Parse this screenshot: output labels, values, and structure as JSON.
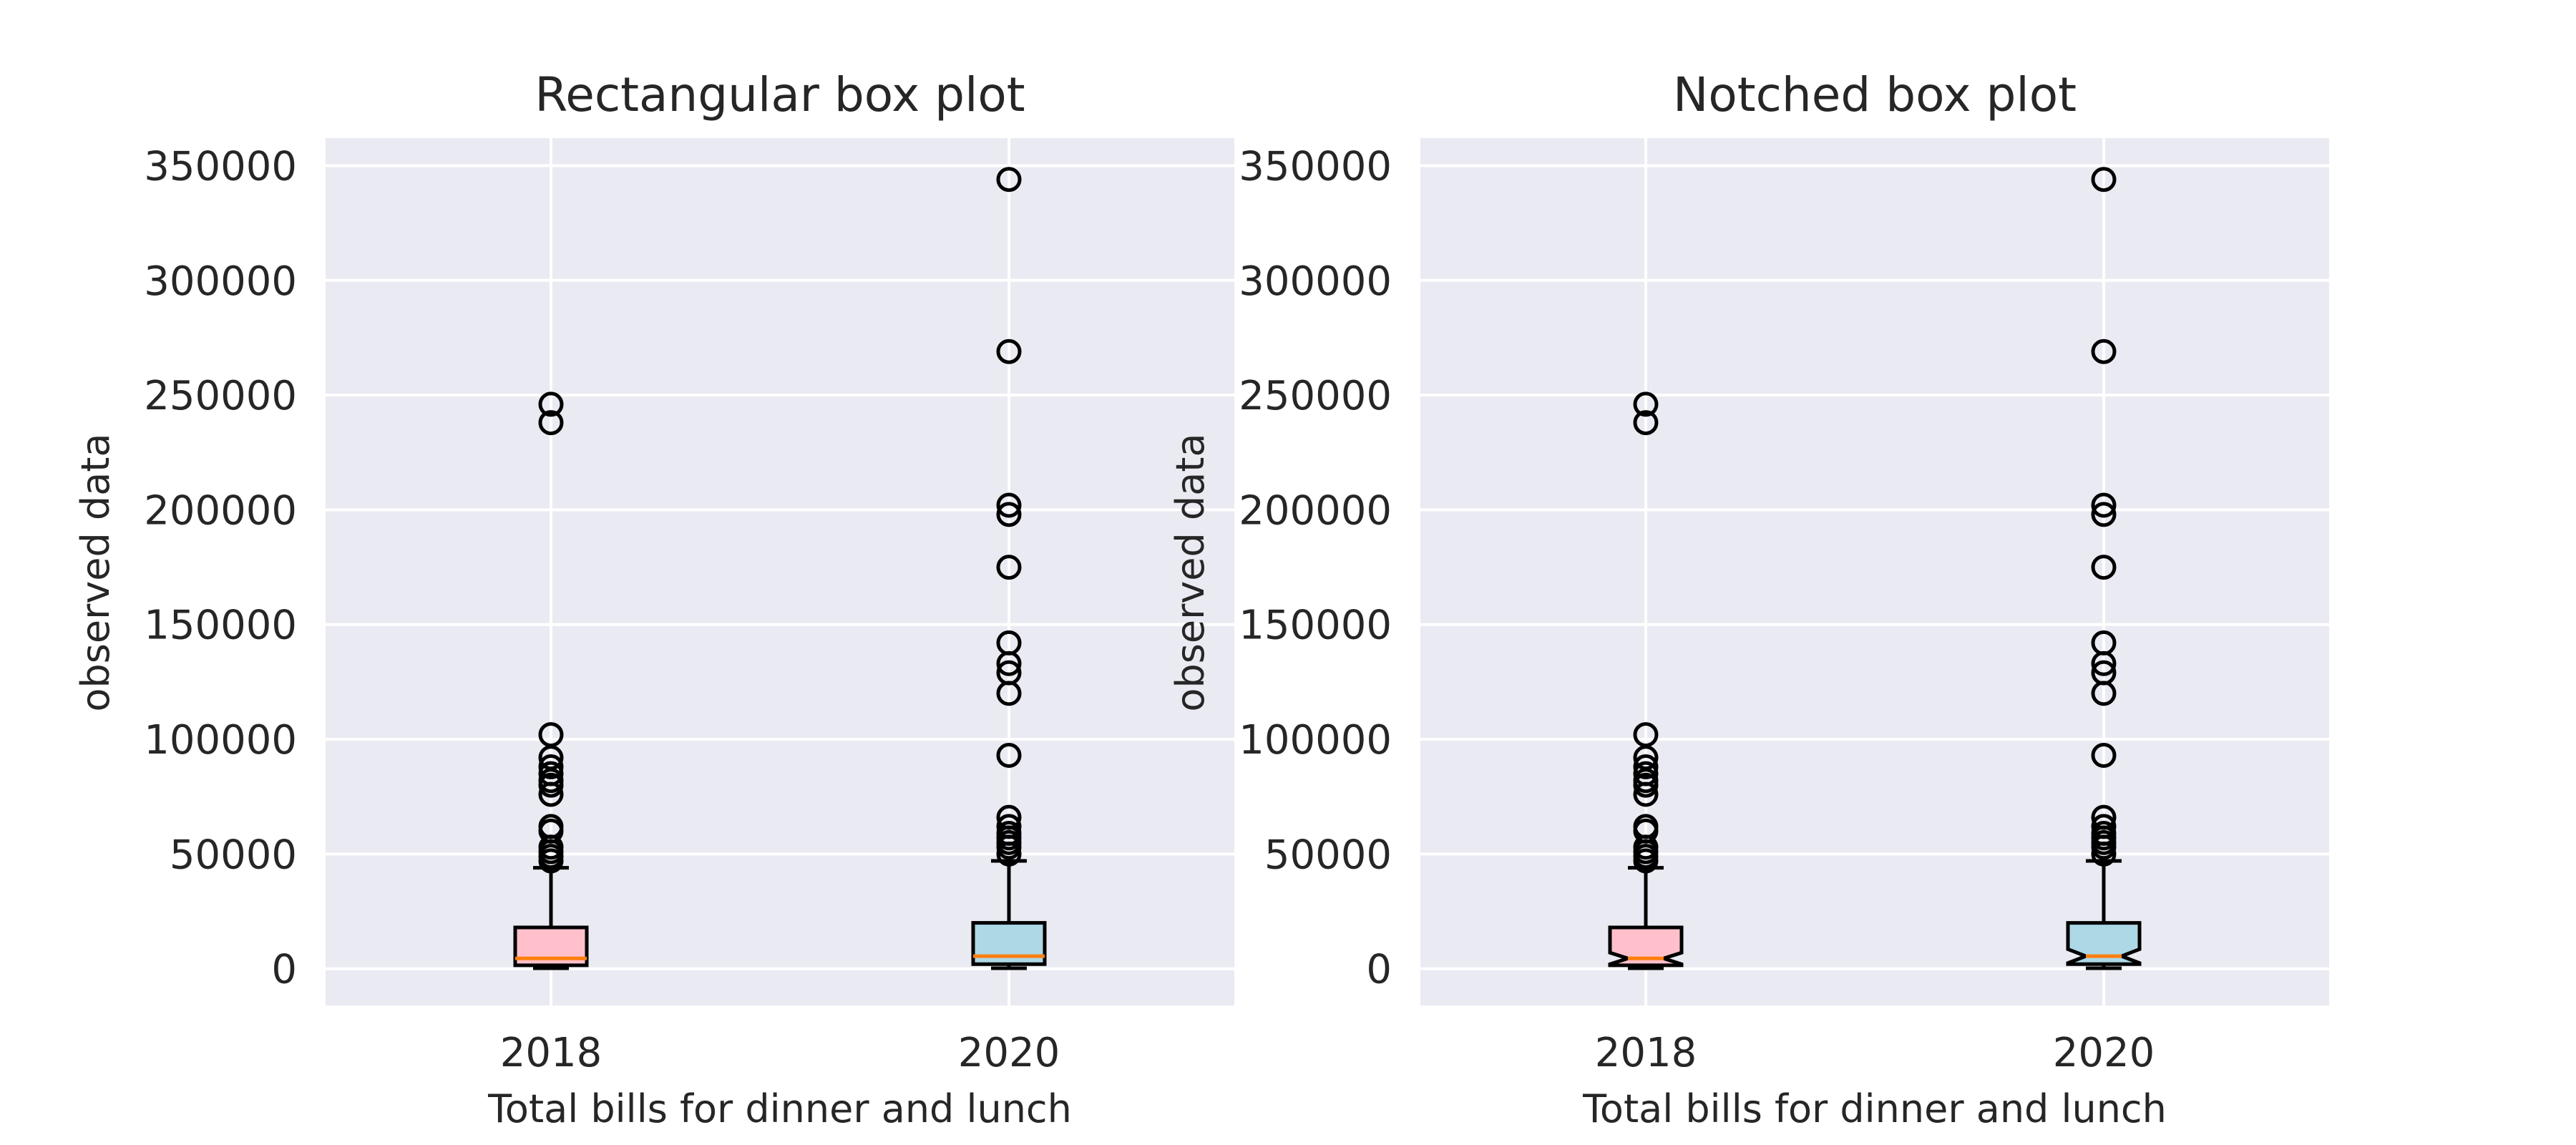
{
  "chart_data": [
    {
      "type": "box",
      "title": "Rectangular box plot",
      "xlabel": "Total bills for dinner and lunch",
      "ylabel": "observed data",
      "notched": false,
      "categories": [
        "2018",
        "2020"
      ],
      "y_ticks": [
        0,
        50000,
        100000,
        150000,
        200000,
        250000,
        300000,
        350000
      ],
      "y_tick_labels": [
        "0",
        "50000",
        "100000",
        "150000",
        "200000",
        "250000",
        "300000",
        "350000"
      ],
      "ylim": [
        -16000,
        362000
      ],
      "grid": true,
      "background": "#eaeaf2",
      "box_colors": [
        "#ffc0cb",
        "#add8e6"
      ],
      "median_color": "#ff7f0e",
      "boxes": [
        {
          "category": "2018",
          "whisker_low": 200,
          "q1": 1500,
          "median": 4500,
          "q3": 18000,
          "whisker_high": 44000,
          "notch_low": 2000,
          "notch_high": 7000,
          "outliers": [
            47000,
            49000,
            51000,
            53000,
            60000,
            62000,
            76000,
            80000,
            82000,
            85000,
            88000,
            92000,
            102000,
            238000,
            246000
          ]
        },
        {
          "category": "2020",
          "whisker_low": 200,
          "q1": 2000,
          "median": 5500,
          "q3": 20000,
          "whisker_high": 47000,
          "notch_low": 2500,
          "notch_high": 8500,
          "outliers": [
            50000,
            53000,
            55000,
            57000,
            59000,
            62000,
            66000,
            93000,
            120000,
            129000,
            133000,
            142000,
            175000,
            198000,
            202000,
            269000,
            344000
          ]
        }
      ]
    },
    {
      "type": "box",
      "title": "Notched box plot",
      "xlabel": "Total bills for dinner and lunch",
      "ylabel": "observed data",
      "notched": true,
      "categories": [
        "2018",
        "2020"
      ],
      "y_ticks": [
        0,
        50000,
        100000,
        150000,
        200000,
        250000,
        300000,
        350000
      ],
      "y_tick_labels": [
        "0",
        "50000",
        "100000",
        "150000",
        "200000",
        "250000",
        "300000",
        "350000"
      ],
      "ylim": [
        -16000,
        362000
      ],
      "grid": true,
      "background": "#eaeaf2",
      "box_colors": [
        "#ffc0cb",
        "#add8e6"
      ],
      "median_color": "#ff7f0e",
      "boxes": [
        {
          "category": "2018",
          "whisker_low": 200,
          "q1": 1500,
          "median": 4500,
          "q3": 18000,
          "whisker_high": 44000,
          "notch_low": 2000,
          "notch_high": 7000,
          "outliers": [
            47000,
            49000,
            51000,
            53000,
            60000,
            62000,
            76000,
            80000,
            82000,
            85000,
            88000,
            92000,
            102000,
            238000,
            246000
          ]
        },
        {
          "category": "2020",
          "whisker_low": 200,
          "q1": 2000,
          "median": 5500,
          "q3": 20000,
          "whisker_high": 47000,
          "notch_low": 2500,
          "notch_high": 8500,
          "outliers": [
            50000,
            53000,
            55000,
            57000,
            59000,
            62000,
            66000,
            93000,
            120000,
            129000,
            133000,
            142000,
            175000,
            198000,
            202000,
            269000,
            344000
          ]
        }
      ]
    }
  ]
}
